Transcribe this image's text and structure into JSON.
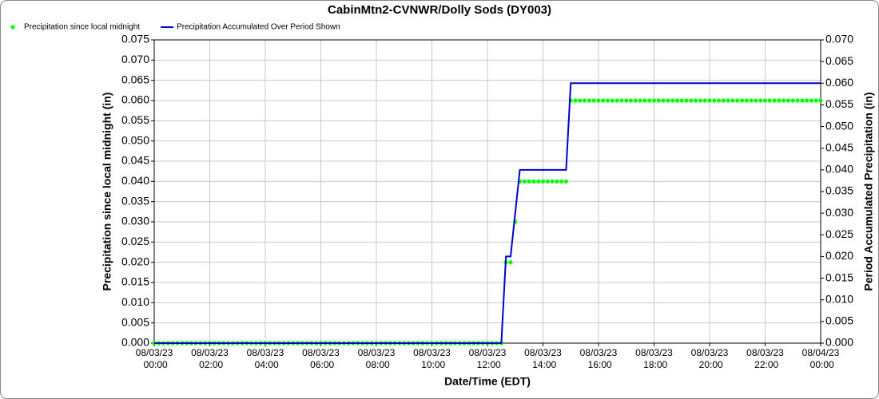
{
  "chart_data": {
    "type": "line",
    "title": "CabinMtn2-CVNWR/Dolly Sods (DY003)",
    "x_label": "Date/Time (EDT)",
    "y_label": "Precipitation since local midnight (in)",
    "y2_label": "Period Accumulated Precipitation (in)",
    "grid": true,
    "legend": "top-left",
    "xlim": [
      "08/03/23 00:00",
      "08/04/23 00:00"
    ],
    "xticks": [
      "08/03/23 00:00",
      "08/03/23 02:00",
      "08/03/23 04:00",
      "08/03/23 06:00",
      "08/03/23 08:00",
      "08/03/23 10:00",
      "08/03/23 12:00",
      "08/03/23 14:00",
      "08/03/23 16:00",
      "08/03/23 18:00",
      "08/03/23 20:00",
      "08/03/23 22:00",
      "08/04/23 00:00"
    ],
    "ylim": [
      0,
      0.075
    ],
    "yticks": [
      {
        "value": 0,
        "label": "0.000"
      },
      0.005,
      {
        "value": 0.01,
        "label": "0.010"
      },
      0.015,
      {
        "value": 0.02,
        "label": "0.020"
      },
      0.025,
      {
        "value": 0.03,
        "label": "0.030"
      },
      0.035,
      {
        "value": 0.04,
        "label": "0.040"
      },
      0.045,
      {
        "value": 0.05,
        "label": "0.050"
      },
      0.055,
      {
        "value": 0.06,
        "label": "0.060"
      },
      0.065,
      {
        "value": 0.07,
        "label": "0.070"
      },
      0.075
    ],
    "y2lim": [
      0,
      0.07
    ],
    "y2ticks": [
      {
        "value": 0,
        "label": "0.000"
      },
      0.005,
      {
        "value": 0.01,
        "label": "0.010"
      },
      0.015,
      {
        "value": 0.02,
        "label": "0.020"
      },
      0.025,
      {
        "value": 0.03,
        "label": "0.030"
      },
      0.035,
      {
        "value": 0.04,
        "label": "0.040"
      },
      0.045,
      {
        "value": 0.05,
        "label": "0.050"
      },
      0.055,
      {
        "value": 0.06,
        "label": "0.060"
      },
      0.065,
      {
        "value": 0.07,
        "label": "0.070"
      }
    ],
    "x": [
      "08/03/23 00:00",
      "08/03/23 00:10",
      "08/03/23 00:20",
      "08/03/23 00:30",
      "08/03/23 00:40",
      "08/03/23 00:50",
      "08/03/23 01:00",
      "08/03/23 01:10",
      "08/03/23 01:20",
      "08/03/23 01:30",
      "08/03/23 01:40",
      "08/03/23 01:50",
      "08/03/23 02:00",
      "08/03/23 02:10",
      "08/03/23 02:20",
      "08/03/23 02:30",
      "08/03/23 02:40",
      "08/03/23 02:50",
      "08/03/23 03:00",
      "08/03/23 03:10",
      "08/03/23 03:20",
      "08/03/23 03:30",
      "08/03/23 03:40",
      "08/03/23 03:50",
      "08/03/23 04:00",
      "08/03/23 04:10",
      "08/03/23 04:20",
      "08/03/23 04:30",
      "08/03/23 04:40",
      "08/03/23 04:50",
      "08/03/23 05:00",
      "08/03/23 05:10",
      "08/03/23 05:20",
      "08/03/23 05:30",
      "08/03/23 05:40",
      "08/03/23 05:50",
      "08/03/23 06:00",
      "08/03/23 06:10",
      "08/03/23 06:20",
      "08/03/23 06:30",
      "08/03/23 06:40",
      "08/03/23 06:50",
      "08/03/23 07:00",
      "08/03/23 07:10",
      "08/03/23 07:20",
      "08/03/23 07:30",
      "08/03/23 07:40",
      "08/03/23 07:50",
      "08/03/23 08:00",
      "08/03/23 08:10",
      "08/03/23 08:20",
      "08/03/23 08:30",
      "08/03/23 08:40",
      "08/03/23 08:50",
      "08/03/23 09:00",
      "08/03/23 09:10",
      "08/03/23 09:20",
      "08/03/23 09:30",
      "08/03/23 09:40",
      "08/03/23 09:50",
      "08/03/23 10:00",
      "08/03/23 10:10",
      "08/03/23 10:20",
      "08/03/23 10:30",
      "08/03/23 10:40",
      "08/03/23 10:50",
      "08/03/23 11:00",
      "08/03/23 11:10",
      "08/03/23 11:20",
      "08/03/23 11:30",
      "08/03/23 11:40",
      "08/03/23 11:50",
      "08/03/23 12:00",
      "08/03/23 12:10",
      "08/03/23 12:20",
      "08/03/23 12:30",
      "08/03/23 12:40",
      "08/03/23 12:50",
      "08/03/23 13:00",
      "08/03/23 13:10",
      "08/03/23 13:20",
      "08/03/23 13:30",
      "08/03/23 13:40",
      "08/03/23 13:50",
      "08/03/23 14:00",
      "08/03/23 14:10",
      "08/03/23 14:20",
      "08/03/23 14:30",
      "08/03/23 14:40",
      "08/03/23 14:50",
      "08/03/23 15:00",
      "08/03/23 15:10",
      "08/03/23 15:20",
      "08/03/23 15:30",
      "08/03/23 15:40",
      "08/03/23 15:50",
      "08/03/23 16:00",
      "08/03/23 16:10",
      "08/03/23 16:20",
      "08/03/23 16:30",
      "08/03/23 16:40",
      "08/03/23 16:50",
      "08/03/23 17:00",
      "08/03/23 17:10",
      "08/03/23 17:20",
      "08/03/23 17:30",
      "08/03/23 17:40",
      "08/03/23 17:50",
      "08/03/23 18:00",
      "08/03/23 18:10",
      "08/03/23 18:20",
      "08/03/23 18:30",
      "08/03/23 18:40",
      "08/03/23 18:50",
      "08/03/23 19:00",
      "08/03/23 19:10",
      "08/03/23 19:20",
      "08/03/23 19:30",
      "08/03/23 19:40",
      "08/03/23 19:50",
      "08/03/23 20:00",
      "08/03/23 20:10",
      "08/03/23 20:20",
      "08/03/23 20:30",
      "08/03/23 20:40",
      "08/03/23 20:50",
      "08/03/23 21:00",
      "08/03/23 21:10",
      "08/03/23 21:20",
      "08/03/23 21:30",
      "08/03/23 21:40",
      "08/03/23 21:50",
      "08/03/23 22:00",
      "08/03/23 22:10",
      "08/03/23 22:20",
      "08/03/23 22:30",
      "08/03/23 22:40",
      "08/03/23 22:50",
      "08/03/23 23:00",
      "08/03/23 23:10",
      "08/03/23 23:20",
      "08/03/23 23:30",
      "08/03/23 23:40",
      "08/03/23 23:50",
      "08/04/23 00:00"
    ],
    "series": [
      {
        "name": "Precipitation since local midnight",
        "color": "#00ff00",
        "mode": "markers",
        "axis": "y",
        "values": [
          0,
          0,
          0,
          0,
          0,
          0,
          0,
          0,
          0,
          0,
          0,
          0,
          0,
          0,
          0,
          0,
          0,
          0,
          0,
          0,
          0,
          0,
          0,
          0,
          0,
          0,
          0,
          0,
          0,
          0,
          0,
          0,
          0,
          0,
          0,
          0,
          0,
          0,
          0,
          0,
          0,
          0,
          0,
          0,
          0,
          0,
          0,
          0,
          0,
          0,
          0,
          0,
          0,
          0,
          0,
          0,
          0,
          0,
          0,
          0,
          0,
          0,
          0,
          0,
          0,
          0,
          0,
          0,
          0,
          0,
          0,
          0,
          0,
          0,
          0,
          0,
          0.02,
          0.02,
          0.03,
          0.04,
          0.04,
          0.04,
          0.04,
          0.04,
          0.04,
          0.04,
          0.04,
          0.04,
          0.04,
          0.04,
          0.06,
          0.06,
          0.06,
          0.06,
          0.06,
          0.06,
          0.06,
          0.06,
          0.06,
          0.06,
          0.06,
          0.06,
          0.06,
          0.06,
          0.06,
          0.06,
          0.06,
          0.06,
          0.06,
          0.06,
          0.06,
          0.06,
          0.06,
          0.06,
          0.06,
          0.06,
          0.06,
          0.06,
          0.06,
          0.06,
          0.06,
          0.06,
          0.06,
          0.06,
          0.06,
          0.06,
          0.06,
          0.06,
          0.06,
          0.06,
          0.06,
          0.06,
          0.06,
          0.06,
          0.06,
          0.06,
          0.06,
          0.06,
          0.06,
          0.06,
          0.06,
          0.06,
          0.06,
          0.06,
          0.06
        ]
      },
      {
        "name": "Precipitation Accumulated Over Period Shown",
        "color": "#0000cc",
        "mode": "line",
        "axis": "y2",
        "values": [
          0,
          0,
          0,
          0,
          0,
          0,
          0,
          0,
          0,
          0,
          0,
          0,
          0,
          0,
          0,
          0,
          0,
          0,
          0,
          0,
          0,
          0,
          0,
          0,
          0,
          0,
          0,
          0,
          0,
          0,
          0,
          0,
          0,
          0,
          0,
          0,
          0,
          0,
          0,
          0,
          0,
          0,
          0,
          0,
          0,
          0,
          0,
          0,
          0,
          0,
          0,
          0,
          0,
          0,
          0,
          0,
          0,
          0,
          0,
          0,
          0,
          0,
          0,
          0,
          0,
          0,
          0,
          0,
          0,
          0,
          0,
          0,
          0,
          0,
          0,
          0,
          0.02,
          0.02,
          0.03,
          0.04,
          0.04,
          0.04,
          0.04,
          0.04,
          0.04,
          0.04,
          0.04,
          0.04,
          0.04,
          0.04,
          0.06,
          0.06,
          0.06,
          0.06,
          0.06,
          0.06,
          0.06,
          0.06,
          0.06,
          0.06,
          0.06,
          0.06,
          0.06,
          0.06,
          0.06,
          0.06,
          0.06,
          0.06,
          0.06,
          0.06,
          0.06,
          0.06,
          0.06,
          0.06,
          0.06,
          0.06,
          0.06,
          0.06,
          0.06,
          0.06,
          0.06,
          0.06,
          0.06,
          0.06,
          0.06,
          0.06,
          0.06,
          0.06,
          0.06,
          0.06,
          0.06,
          0.06,
          0.06,
          0.06,
          0.06,
          0.06,
          0.06,
          0.06,
          0.06,
          0.06,
          0.06,
          0.06,
          0.06,
          0.06,
          0.06
        ]
      }
    ]
  }
}
